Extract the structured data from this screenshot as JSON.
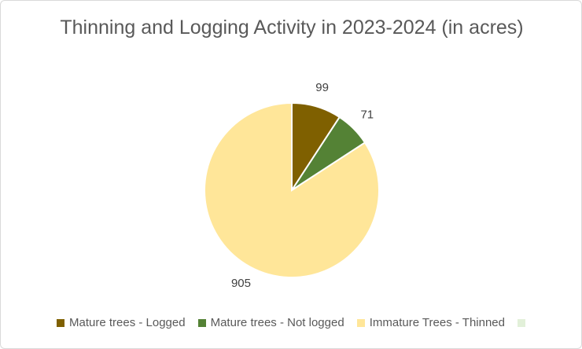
{
  "chart_data": {
    "type": "pie",
    "title": "Thinning and Logging Activity in 2023-2024 (in acres)",
    "categories": [
      "Mature trees - Logged",
      "Mature trees - Not logged",
      "Immature Trees - Thinned",
      null
    ],
    "values": [
      99,
      71,
      905,
      null
    ],
    "colors": [
      "#7f6000",
      "#548235",
      "#ffe699",
      "#e2f0d9"
    ],
    "legend": "bottom"
  }
}
